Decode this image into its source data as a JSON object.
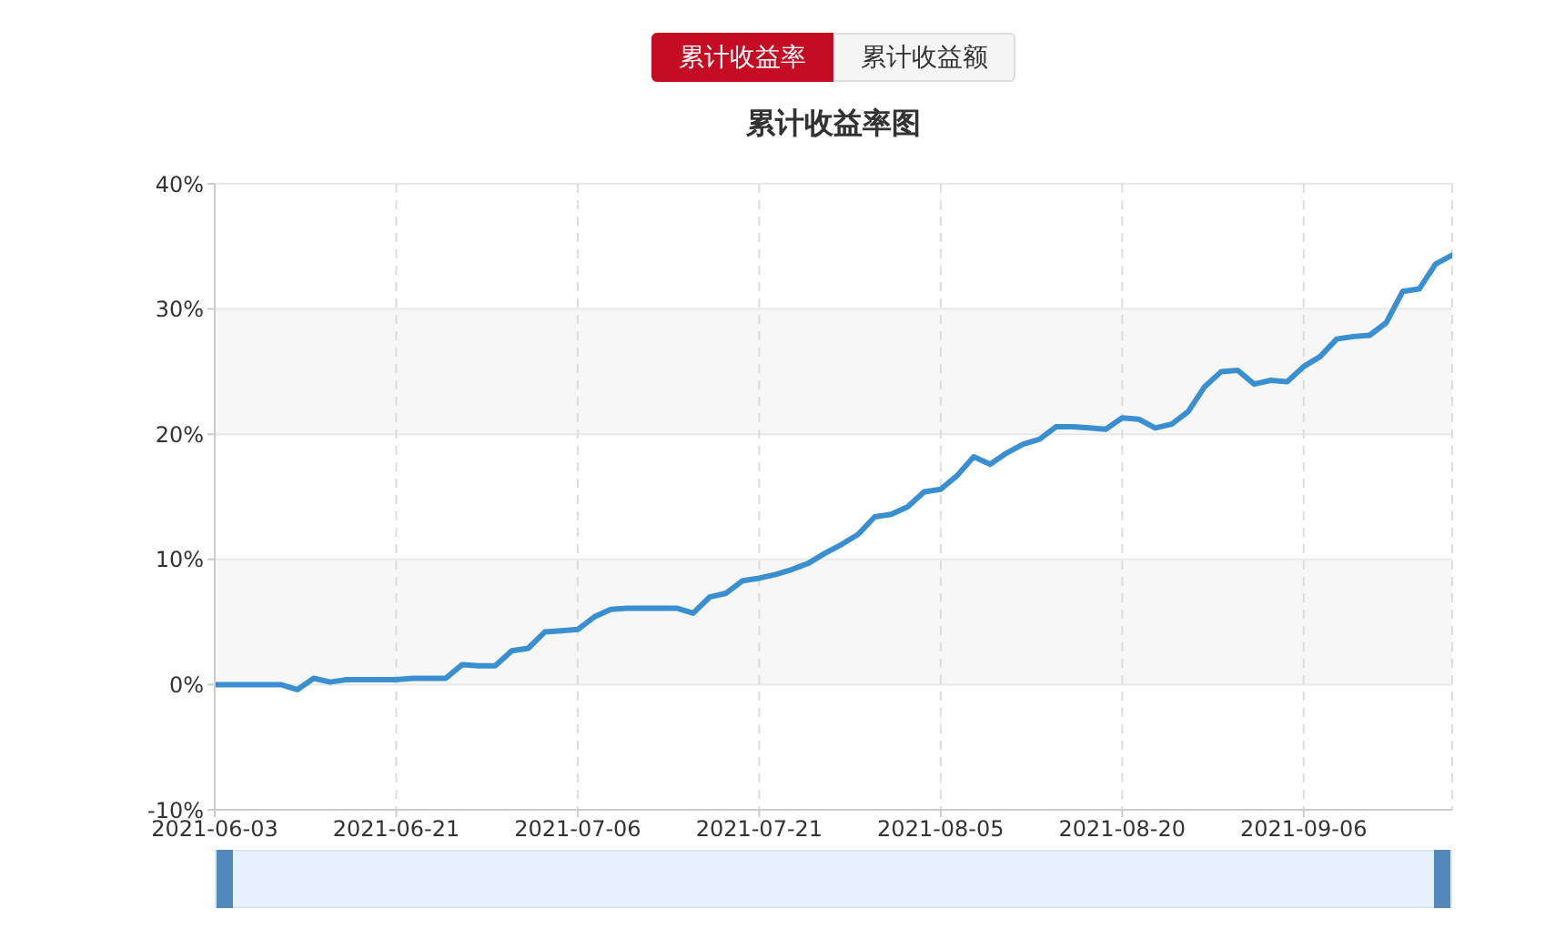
{
  "chart_data": {
    "type": "line",
    "title": "累计收益率图",
    "annotations": [
      "累计收益率",
      "累计收益额"
    ],
    "categories": [
      "2021-06-03",
      null,
      null,
      null,
      null,
      null,
      null,
      null,
      null,
      null,
      null,
      "2021-06-21",
      null,
      null,
      null,
      null,
      null,
      null,
      null,
      null,
      null,
      null,
      "2021-07-06",
      null,
      null,
      null,
      null,
      null,
      null,
      null,
      null,
      null,
      null,
      "2021-07-21",
      null,
      null,
      null,
      null,
      null,
      null,
      null,
      null,
      null,
      null,
      "2021-08-05",
      null,
      null,
      null,
      null,
      null,
      null,
      null,
      null,
      null,
      null,
      "2021-08-20",
      null,
      null,
      null,
      null,
      null,
      null,
      null,
      null,
      null,
      null,
      "2021-09-06",
      null,
      null,
      null,
      null,
      null,
      null,
      null,
      null,
      null
    ],
    "values": [
      0,
      0,
      0,
      0,
      0,
      -0.4,
      0.5,
      0.2,
      0.4,
      0.4,
      0.4,
      0.4,
      0.5,
      0.5,
      0.5,
      1.6,
      1.5,
      1.5,
      2.7,
      2.9,
      4.2,
      4.3,
      4.4,
      5.4,
      6.0,
      6.1,
      6.1,
      6.1,
      6.1,
      5.7,
      7.0,
      7.3,
      8.3,
      8.5,
      8.8,
      9.2,
      9.7,
      10.5,
      11.2,
      12.0,
      13.4,
      13.6,
      14.2,
      15.4,
      15.6,
      16.7,
      18.2,
      17.6,
      18.5,
      19.2,
      19.6,
      20.6,
      20.6,
      20.5,
      20.4,
      21.3,
      21.2,
      20.5,
      20.8,
      21.8,
      23.8,
      25.0,
      25.1,
      24.0,
      24.3,
      24.2,
      25.4,
      26.2,
      27.6,
      27.8,
      27.9,
      28.9,
      31.4,
      31.6,
      33.6,
      34.3
    ],
    "color": "#3a8fd0",
    "ylim": [
      -10,
      40
    ],
    "yticks": [
      {
        "value": -10,
        "label": "-10%"
      },
      {
        "value": 0,
        "label": "0%"
      },
      {
        "value": 10,
        "label": "10%"
      },
      {
        "value": 20,
        "label": "20%"
      },
      {
        "value": 30,
        "label": "30%"
      },
      {
        "value": 40,
        "label": "40%"
      }
    ],
    "grid": true,
    "marker": "none",
    "line_style": "solid"
  }
}
